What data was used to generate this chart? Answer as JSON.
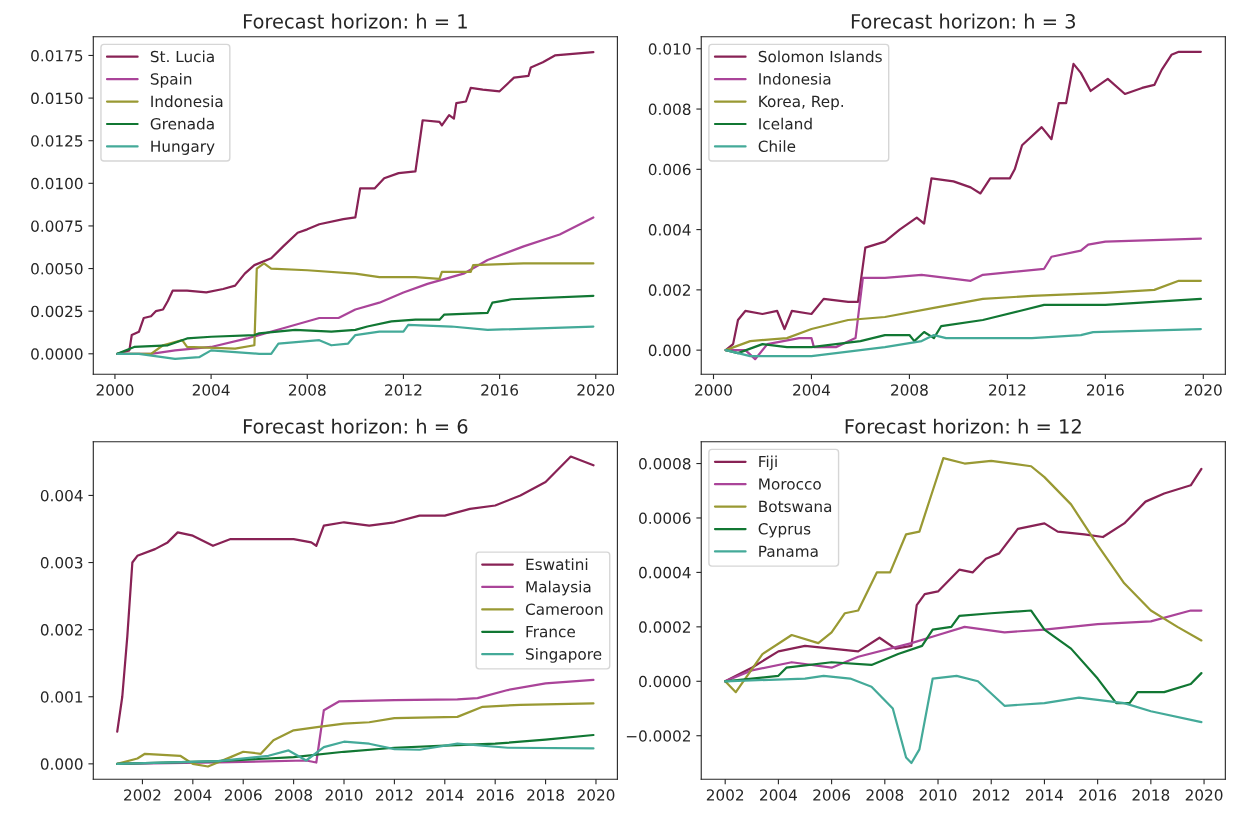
{
  "chart_data": [
    {
      "type": "line",
      "title": "Forecast horizon: h = 1",
      "legend": "top left",
      "grid": false,
      "xlim": [
        1999.1,
        2020.9
      ],
      "ylim": [
        -0.0012,
        0.0186
      ],
      "xticks": [
        2000,
        2004,
        2008,
        2012,
        2016,
        2020
      ],
      "yticks": [
        {
          "value": 0,
          "label": "0.0000"
        },
        {
          "value": 0.0025,
          "label": "0.0025"
        },
        {
          "value": 0.005,
          "label": "0.0050"
        },
        {
          "value": 0.0075,
          "label": "0.0075"
        },
        {
          "value": 0.01,
          "label": "0.0100"
        },
        {
          "value": 0.0125,
          "label": "0.0125"
        },
        {
          "value": 0.015,
          "label": "0.0150"
        },
        {
          "value": 0.0175,
          "label": "0.0175"
        }
      ],
      "series": [
        {
          "name": "St. Lucia",
          "color": "#882255",
          "x": [
            2000.1,
            2000.6,
            2000.7,
            2001.0,
            2001.2,
            2001.5,
            2001.7,
            2002.0,
            2002.2,
            2002.4,
            2003.0,
            2003.8,
            2004.5,
            2005.0,
            2005.4,
            2005.8,
            2006.5,
            2007.0,
            2007.6,
            2008.0,
            2008.5,
            2009.5,
            2010.0,
            2010.2,
            2010.8,
            2011.2,
            2011.8,
            2012.5,
            2012.8,
            2013.5,
            2013.6,
            2013.9,
            2014.1,
            2014.2,
            2014.6,
            2014.8,
            2015.3,
            2016.0,
            2016.6,
            2017.2,
            2017.3,
            2017.8,
            2018.3,
            2019.9
          ],
          "values": [
            0,
            0.0002,
            0.0011,
            0.0013,
            0.0021,
            0.0022,
            0.0025,
            0.0026,
            0.0031,
            0.0037,
            0.0037,
            0.0036,
            0.0038,
            0.004,
            0.0047,
            0.0052,
            0.0056,
            0.0063,
            0.0071,
            0.0073,
            0.0076,
            0.0079,
            0.008,
            0.0097,
            0.0097,
            0.0103,
            0.0106,
            0.0107,
            0.0137,
            0.0136,
            0.0134,
            0.014,
            0.0138,
            0.0147,
            0.0148,
            0.0156,
            0.0155,
            0.0154,
            0.0162,
            0.0163,
            0.0168,
            0.0171,
            0.0175,
            0.0177
          ]
        },
        {
          "name": "Spain",
          "color": "#aa4499",
          "x": [
            2000.1,
            2001.5,
            2002.5,
            2004,
            2005.5,
            2007,
            2008.5,
            2009.3,
            2010,
            2011,
            2012,
            2013,
            2014.5,
            2015.5,
            2017,
            2018.5,
            2019.9
          ],
          "values": [
            0,
            0,
            0.0002,
            0.0004,
            0.0009,
            0.0015,
            0.0021,
            0.0021,
            0.0026,
            0.003,
            0.0036,
            0.0041,
            0.0047,
            0.0055,
            0.0063,
            0.007,
            0.008
          ]
        },
        {
          "name": "Indonesia",
          "color": "#999933",
          "x": [
            2000.1,
            2001.5,
            2002,
            2002.8,
            2003,
            2005,
            2005.8,
            2005.9,
            2006.2,
            2006.5,
            2008,
            2010,
            2011,
            2012.5,
            2013.5,
            2013.6,
            2014.8,
            2014.9,
            2017,
            2019.9
          ],
          "values": [
            0,
            0,
            0.0005,
            0.0008,
            0.0004,
            0.0003,
            0.0005,
            0.005,
            0.0053,
            0.005,
            0.0049,
            0.0047,
            0.0045,
            0.0045,
            0.0044,
            0.0048,
            0.0048,
            0.0052,
            0.0053,
            0.0053
          ]
        },
        {
          "name": "Grenada",
          "color": "#117733",
          "x": [
            2000.1,
            2000.8,
            2002.2,
            2003,
            2004,
            2005.8,
            2006,
            2007.5,
            2009,
            2010,
            2010.5,
            2011.5,
            2012.5,
            2013.5,
            2013.7,
            2015.5,
            2015.7,
            2016.5,
            2019.9
          ],
          "values": [
            0,
            0.0004,
            0.0005,
            0.0009,
            0.001,
            0.0011,
            0.0012,
            0.0014,
            0.0013,
            0.0014,
            0.0016,
            0.0019,
            0.002,
            0.002,
            0.0023,
            0.0024,
            0.003,
            0.0032,
            0.0034
          ]
        },
        {
          "name": "Hungary",
          "color": "#44aa99",
          "x": [
            2000.1,
            2001,
            2002.5,
            2003.5,
            2004,
            2006,
            2006.5,
            2006.8,
            2008.5,
            2009,
            2009.7,
            2010,
            2011,
            2012,
            2012.2,
            2014,
            2015.5,
            2019.9
          ],
          "values": [
            0,
            0,
            -0.0003,
            -0.0002,
            0.0002,
            0,
            0,
            0.0006,
            0.0008,
            0.0005,
            0.0006,
            0.0011,
            0.0013,
            0.0013,
            0.0017,
            0.0016,
            0.0014,
            0.0016
          ]
        }
      ]
    },
    {
      "type": "line",
      "title": "Forecast horizon: h = 3",
      "legend": "top left",
      "grid": false,
      "xlim": [
        1999.5,
        2020.9
      ],
      "ylim": [
        -0.0008,
        0.0104
      ],
      "xticks": [
        2000,
        2004,
        2008,
        2012,
        2016,
        2020
      ],
      "yticks": [
        {
          "value": 0,
          "label": "0.000"
        },
        {
          "value": 0.002,
          "label": "0.002"
        },
        {
          "value": 0.004,
          "label": "0.004"
        },
        {
          "value": 0.006,
          "label": "0.006"
        },
        {
          "value": 0.008,
          "label": "0.008"
        },
        {
          "value": 0.01,
          "label": "0.010"
        }
      ],
      "series": [
        {
          "name": "Solomon Islands",
          "color": "#882255",
          "x": [
            2000.5,
            2000.8,
            2001,
            2001.3,
            2002,
            2002.6,
            2002.9,
            2003.2,
            2004,
            2004.5,
            2005.5,
            2005.9,
            2006.2,
            2007,
            2007.6,
            2008.3,
            2008.6,
            2008.9,
            2009.8,
            2010.5,
            2010.9,
            2011.3,
            2012.1,
            2012.3,
            2012.6,
            2013.4,
            2013.8,
            2014.1,
            2014.4,
            2014.7,
            2015,
            2015.4,
            2016.1,
            2016.8,
            2017.5,
            2018,
            2018.3,
            2018.7,
            2019,
            2019.9
          ],
          "values": [
            0,
            0.0002,
            0.001,
            0.0013,
            0.0012,
            0.0013,
            0.0007,
            0.0013,
            0.0012,
            0.0017,
            0.0016,
            0.0016,
            0.0034,
            0.0036,
            0.004,
            0.0044,
            0.0042,
            0.0057,
            0.0056,
            0.0054,
            0.0052,
            0.0057,
            0.0057,
            0.006,
            0.0068,
            0.0074,
            0.007,
            0.0082,
            0.0082,
            0.0095,
            0.0092,
            0.0086,
            0.009,
            0.0085,
            0.0087,
            0.0088,
            0.0093,
            0.0098,
            0.0099,
            0.0099
          ]
        },
        {
          "name": "Indonesia",
          "color": "#aa4499",
          "x": [
            2000.5,
            2001.3,
            2001.7,
            2002.2,
            2003.5,
            2004,
            2004.1,
            2005,
            2005.8,
            2006.1,
            2007,
            2008.5,
            2010.5,
            2011,
            2013.5,
            2013.8,
            2015,
            2015.3,
            2016,
            2019.9
          ],
          "values": [
            0,
            0,
            -0.0003,
            0.0002,
            0.0004,
            0.0004,
            0.0001,
            0.0001,
            0.0004,
            0.0024,
            0.0024,
            0.0025,
            0.0023,
            0.0025,
            0.0027,
            0.0031,
            0.0033,
            0.0035,
            0.0036,
            0.0037
          ]
        },
        {
          "name": "Korea, Rep.",
          "color": "#999933",
          "x": [
            2000.5,
            2001.5,
            2003,
            2004,
            2005.5,
            2007,
            2009,
            2011,
            2013,
            2016,
            2018,
            2019,
            2019.9
          ],
          "values": [
            0,
            0.0003,
            0.0004,
            0.0007,
            0.001,
            0.0011,
            0.0014,
            0.0017,
            0.0018,
            0.0019,
            0.002,
            0.0023,
            0.0023
          ]
        },
        {
          "name": "Iceland",
          "color": "#117733",
          "x": [
            2000.5,
            2001,
            2002,
            2003,
            2004,
            2005,
            2006,
            2007,
            2008,
            2008.2,
            2008.6,
            2009,
            2009.3,
            2011,
            2012.5,
            2013.5,
            2015,
            2016,
            2019.9
          ],
          "values": [
            0,
            -0.0001,
            0.0002,
            0.0001,
            0.0001,
            0.0002,
            0.0003,
            0.0005,
            0.0005,
            0.0003,
            0.0006,
            0.0004,
            0.0008,
            0.001,
            0.0013,
            0.0015,
            0.0015,
            0.0015,
            0.0017
          ]
        },
        {
          "name": "Chile",
          "color": "#44aa99",
          "x": [
            2000.5,
            2001.5,
            2003,
            2004,
            2005,
            2007,
            2008.5,
            2009,
            2009.5,
            2013,
            2015,
            2015.5,
            2019.9
          ],
          "values": [
            0,
            -0.0002,
            -0.0002,
            -0.0002,
            -0.0001,
            0.0001,
            0.0003,
            0.0005,
            0.0004,
            0.0004,
            0.0005,
            0.0006,
            0.0007
          ]
        }
      ]
    },
    {
      "type": "line",
      "title": "Forecast horizon: h = 6",
      "legend": "right",
      "grid": false,
      "xlim": [
        2000.05,
        2020.85
      ],
      "ylim": [
        -0.00023,
        0.0048
      ],
      "xticks": [
        2002,
        2004,
        2006,
        2008,
        2010,
        2012,
        2014,
        2016,
        2018,
        2020
      ],
      "yticks": [
        {
          "value": 0,
          "label": "0.000"
        },
        {
          "value": 0.001,
          "label": "0.001"
        },
        {
          "value": 0.002,
          "label": "0.002"
        },
        {
          "value": 0.003,
          "label": "0.003"
        },
        {
          "value": 0.004,
          "label": "0.004"
        }
      ],
      "series": [
        {
          "name": "Eswatini",
          "color": "#882255",
          "x": [
            2001,
            2001.2,
            2001.4,
            2001.6,
            2001.8,
            2002.5,
            2003,
            2003.4,
            2004,
            2004.8,
            2005.5,
            2008,
            2008.7,
            2008.9,
            2009.2,
            2010,
            2011,
            2012,
            2013,
            2014,
            2015,
            2016,
            2017,
            2018,
            2019,
            2019.9
          ],
          "values": [
            0.00048,
            0.001,
            0.0019,
            0.003,
            0.0031,
            0.0032,
            0.0033,
            0.00345,
            0.0034,
            0.00325,
            0.00335,
            0.00335,
            0.0033,
            0.00325,
            0.00355,
            0.0036,
            0.00355,
            0.0036,
            0.0037,
            0.0037,
            0.0038,
            0.00385,
            0.004,
            0.0042,
            0.00458,
            0.00445
          ]
        },
        {
          "name": "Malaysia",
          "color": "#aa4499",
          "x": [
            2001,
            2005,
            2008.5,
            2008.9,
            2009.2,
            2009.8,
            2012,
            2014.5,
            2015.3,
            2016.5,
            2018,
            2019.9
          ],
          "values": [
            0,
            2e-05,
            5e-05,
            2e-05,
            0.0008,
            0.00093,
            0.00095,
            0.00096,
            0.00098,
            0.0011,
            0.0012,
            0.00125
          ]
        },
        {
          "name": "Cameroon",
          "color": "#999933",
          "x": [
            2001,
            2001.8,
            2002.1,
            2003.5,
            2004,
            2004.6,
            2005.5,
            2006,
            2006.7,
            2007.2,
            2008,
            2009,
            2010,
            2011,
            2012,
            2014.5,
            2015.5,
            2017,
            2019.9
          ],
          "values": [
            0,
            8e-05,
            0.00015,
            0.00012,
            0,
            -4e-05,
            0.0001,
            0.00018,
            0.00015,
            0.00035,
            0.0005,
            0.00055,
            0.0006,
            0.00062,
            0.00068,
            0.0007,
            0.00085,
            0.00088,
            0.0009
          ]
        },
        {
          "name": "France",
          "color": "#117733",
          "x": [
            2001,
            2005,
            2008,
            2010,
            2012,
            2014,
            2016,
            2018,
            2019.9
          ],
          "values": [
            0,
            4e-05,
            0.0001,
            0.00018,
            0.00024,
            0.00027,
            0.0003,
            0.00036,
            0.00043
          ]
        },
        {
          "name": "Singapore",
          "color": "#44aa99",
          "x": [
            2001,
            2005,
            2007,
            2007.8,
            2008.5,
            2009.2,
            2010,
            2011,
            2012,
            2013,
            2014.5,
            2016.5,
            2019.9
          ],
          "values": [
            0,
            4e-05,
            0.00012,
            0.0002,
            5e-05,
            0.00025,
            0.00033,
            0.0003,
            0.00022,
            0.00021,
            0.0003,
            0.00024,
            0.00023
          ]
        }
      ]
    },
    {
      "type": "line",
      "title": "Forecast horizon: h = 12",
      "legend": "top left",
      "grid": false,
      "xlim": [
        2001.1,
        2020.8
      ],
      "ylim": [
        -0.00036,
        0.00088
      ],
      "xticks": [
        2002,
        2004,
        2006,
        2008,
        2010,
        2012,
        2014,
        2016,
        2018,
        2020
      ],
      "yticks": [
        {
          "value": -0.0002,
          "label": "−0.0002"
        },
        {
          "value": 0,
          "label": "0.0000"
        },
        {
          "value": 0.0002,
          "label": "0.0002"
        },
        {
          "value": 0.0004,
          "label": "0.0004"
        },
        {
          "value": 0.0006,
          "label": "0.0006"
        },
        {
          "value": 0.0008,
          "label": "0.0008"
        }
      ],
      "series": [
        {
          "name": "Fiji",
          "color": "#882255",
          "x": [
            2002,
            2003,
            2004,
            2005,
            2006,
            2007,
            2007.8,
            2008.4,
            2009,
            2009.2,
            2009.5,
            2010,
            2010.8,
            2011.3,
            2011.8,
            2012.3,
            2013,
            2014,
            2014.5,
            2015.5,
            2016.2,
            2017,
            2017.8,
            2018.5,
            2019.5,
            2019.9
          ],
          "values": [
            0,
            5e-05,
            0.00011,
            0.00013,
            0.00012,
            0.00011,
            0.00016,
            0.00012,
            0.00013,
            0.00028,
            0.00032,
            0.00033,
            0.00041,
            0.0004,
            0.00045,
            0.00047,
            0.00056,
            0.00058,
            0.00055,
            0.00054,
            0.00053,
            0.00058,
            0.00066,
            0.00069,
            0.00072,
            0.00078
          ]
        },
        {
          "name": "Morocco",
          "color": "#aa4499",
          "x": [
            2002,
            2003,
            2004.5,
            2006,
            2007,
            2009,
            2010,
            2011,
            2012.5,
            2014,
            2016,
            2018,
            2019.5,
            2019.9
          ],
          "values": [
            0,
            4e-05,
            7e-05,
            5e-05,
            9e-05,
            0.00014,
            0.00017,
            0.0002,
            0.00018,
            0.00019,
            0.00021,
            0.00022,
            0.00026,
            0.00026
          ]
        },
        {
          "name": "Botswana",
          "color": "#999933",
          "x": [
            2002,
            2002.4,
            2003.4,
            2004.5,
            2005.5,
            2006,
            2006.5,
            2007,
            2007.7,
            2008.2,
            2008.8,
            2009.3,
            2009.8,
            2010.2,
            2011,
            2012,
            2013.5,
            2014,
            2015,
            2016,
            2017,
            2018,
            2019,
            2019.9
          ],
          "values": [
            0,
            -4e-05,
            0.0001,
            0.00017,
            0.00014,
            0.00018,
            0.00025,
            0.00026,
            0.0004,
            0.0004,
            0.00054,
            0.00055,
            0.0007,
            0.00082,
            0.0008,
            0.00081,
            0.00079,
            0.00075,
            0.00065,
            0.0005,
            0.00036,
            0.00026,
            0.0002,
            0.00015
          ]
        },
        {
          "name": "Cyprus",
          "color": "#117733",
          "x": [
            2002,
            2004,
            2004.3,
            2006,
            2007.5,
            2008.5,
            2009.4,
            2009.8,
            2010.5,
            2010.8,
            2012,
            2013.5,
            2014,
            2015,
            2016,
            2016.7,
            2017.2,
            2017.5,
            2018.5,
            2019.5,
            2019.9
          ],
          "values": [
            0,
            2e-05,
            5e-05,
            7e-05,
            6e-05,
            0.0001,
            0.00013,
            0.00019,
            0.0002,
            0.00024,
            0.00025,
            0.00026,
            0.00019,
            0.00012,
            1e-05,
            -8e-05,
            -8e-05,
            -4e-05,
            -4e-05,
            -1e-05,
            3e-05
          ]
        },
        {
          "name": "Panama",
          "color": "#44aa99",
          "x": [
            2002,
            2005,
            2005.7,
            2006.7,
            2007.5,
            2008.3,
            2008.8,
            2009,
            2009.3,
            2009.8,
            2010.7,
            2011.5,
            2012.5,
            2014,
            2015.3,
            2017,
            2018,
            2019.9
          ],
          "values": [
            0,
            1e-05,
            2e-05,
            1e-05,
            -2e-05,
            -0.0001,
            -0.00028,
            -0.0003,
            -0.00025,
            1e-05,
            2e-05,
            0,
            -9e-05,
            -8e-05,
            -6e-05,
            -8e-05,
            -0.00011,
            -0.00015
          ]
        }
      ]
    }
  ]
}
